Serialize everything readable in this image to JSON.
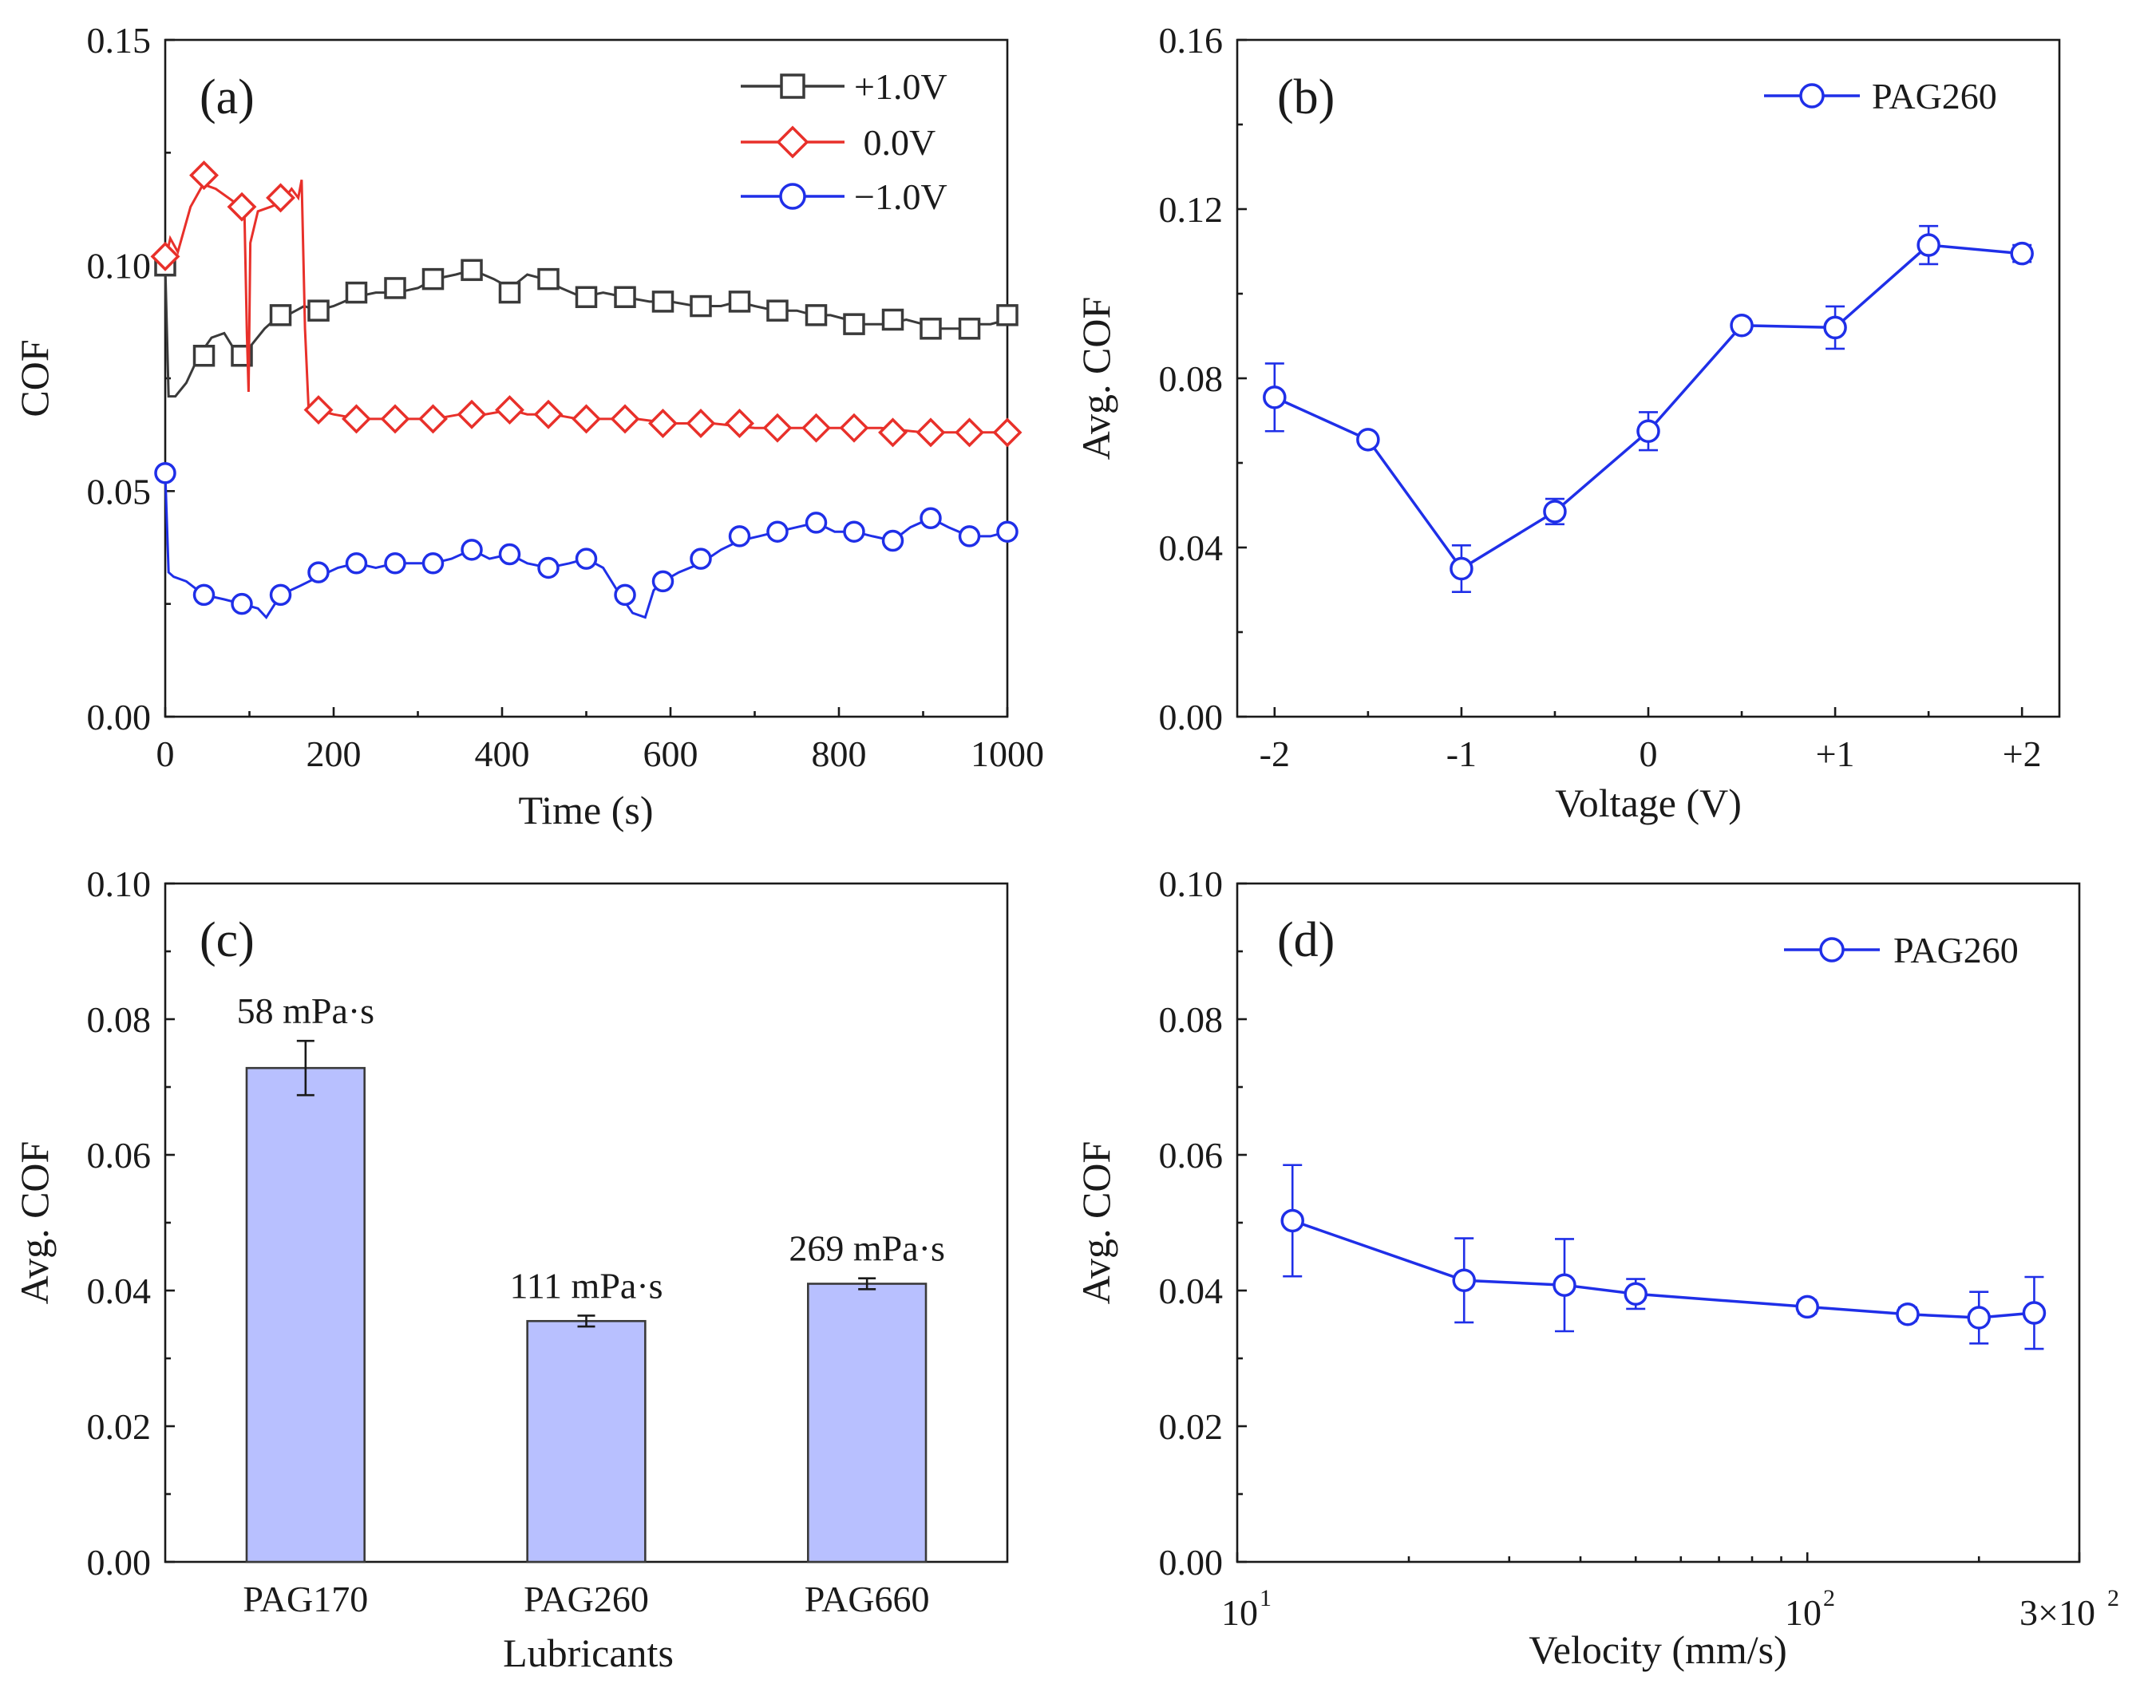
{
  "colors": {
    "black": "#3a3a3a",
    "red": "#e8302a",
    "blue": "#1f2fe8",
    "bar_fill": "#b8c0ff",
    "bar_edge": "#3a3a3a"
  },
  "chart_data": [
    {
      "id": "a",
      "type": "line",
      "panel_label": "(a)",
      "xlabel": "Time (s)",
      "ylabel": "COF",
      "xlim": [
        0,
        1000
      ],
      "ylim": [
        0,
        0.15
      ],
      "xticks": [
        0,
        200,
        400,
        600,
        800,
        1000
      ],
      "xtick_labels": [
        "0",
        "200",
        "400",
        "600",
        "800",
        "1000"
      ],
      "yticks": [
        0,
        0.05,
        0.1,
        0.15
      ],
      "ytick_labels": [
        "0.00",
        "0.05",
        "0.10",
        "0.15"
      ],
      "legend": [
        "+1.0V",
        " 0.0V",
        "−1.0V"
      ],
      "series": [
        {
          "name": "+1.0V",
          "color": "black",
          "marker": "square",
          "line": [
            [
              0,
              0.1
            ],
            [
              4,
              0.071
            ],
            [
              12,
              0.071
            ],
            [
              25,
              0.074
            ],
            [
              40,
              0.08
            ],
            [
              55,
              0.084
            ],
            [
              70,
              0.085
            ],
            [
              80,
              0.082
            ],
            [
              92,
              0.08
            ],
            [
              105,
              0.083
            ],
            [
              118,
              0.086
            ],
            [
              130,
              0.088
            ],
            [
              145,
              0.089
            ],
            [
              165,
              0.091
            ],
            [
              180,
              0.09
            ],
            [
              200,
              0.091
            ],
            [
              225,
              0.093
            ],
            [
              250,
              0.094
            ],
            [
              275,
              0.094
            ],
            [
              300,
              0.095
            ],
            [
              320,
              0.097
            ],
            [
              345,
              0.098
            ],
            [
              365,
              0.099
            ],
            [
              390,
              0.097
            ],
            [
              410,
              0.095
            ],
            [
              430,
              0.098
            ],
            [
              450,
              0.097
            ],
            [
              470,
              0.095
            ],
            [
              495,
              0.093
            ],
            [
              520,
              0.094
            ],
            [
              545,
              0.093
            ],
            [
              575,
              0.092
            ],
            [
              600,
              0.092
            ],
            [
              630,
              0.091
            ],
            [
              660,
              0.091
            ],
            [
              680,
              0.092
            ],
            [
              700,
              0.091
            ],
            [
              725,
              0.09
            ],
            [
              750,
              0.09
            ],
            [
              770,
              0.089
            ],
            [
              790,
              0.089
            ],
            [
              810,
              0.088
            ],
            [
              830,
              0.087
            ],
            [
              855,
              0.087
            ],
            [
              880,
              0.088
            ],
            [
              900,
              0.087
            ],
            [
              920,
              0.086
            ],
            [
              945,
              0.086
            ],
            [
              965,
              0.087
            ],
            [
              980,
              0.087
            ],
            [
              1000,
              0.088
            ]
          ],
          "markers": [
            [
              0,
              0.1
            ],
            [
              46,
              0.08
            ],
            [
              91,
              0.08
            ],
            [
              137,
              0.089
            ],
            [
              182,
              0.09
            ],
            [
              227,
              0.094
            ],
            [
              273,
              0.095
            ],
            [
              318,
              0.097
            ],
            [
              364,
              0.099
            ],
            [
              409,
              0.094
            ],
            [
              455,
              0.097
            ],
            [
              500,
              0.093
            ],
            [
              546,
              0.093
            ],
            [
              591,
              0.092
            ],
            [
              636,
              0.091
            ],
            [
              682,
              0.092
            ],
            [
              727,
              0.09
            ],
            [
              773,
              0.089
            ],
            [
              818,
              0.087
            ],
            [
              864,
              0.088
            ],
            [
              909,
              0.086
            ],
            [
              955,
              0.086
            ],
            [
              1000,
              0.089
            ]
          ]
        },
        {
          "name": "0.0V",
          "color": "red",
          "marker": "diamond",
          "line": [
            [
              0,
              0.101
            ],
            [
              6,
              0.106
            ],
            [
              15,
              0.103
            ],
            [
              30,
              0.113
            ],
            [
              45,
              0.118
            ],
            [
              60,
              0.117
            ],
            [
              75,
              0.115
            ],
            [
              90,
              0.113
            ],
            [
              94,
              0.112
            ],
            [
              97,
              0.085
            ],
            [
              99,
              0.072
            ],
            [
              101,
              0.105
            ],
            [
              110,
              0.112
            ],
            [
              125,
              0.113
            ],
            [
              138,
              0.114
            ],
            [
              150,
              0.117
            ],
            [
              158,
              0.115
            ],
            [
              162,
              0.119
            ],
            [
              166,
              0.086
            ],
            [
              170,
              0.069
            ],
            [
              180,
              0.068
            ],
            [
              200,
              0.067
            ],
            [
              230,
              0.066
            ],
            [
              260,
              0.066
            ],
            [
              290,
              0.066
            ],
            [
              320,
              0.066
            ],
            [
              350,
              0.067
            ],
            [
              380,
              0.067
            ],
            [
              410,
              0.068
            ],
            [
              430,
              0.067
            ],
            [
              460,
              0.067
            ],
            [
              490,
              0.066
            ],
            [
              520,
              0.066
            ],
            [
              560,
              0.066
            ],
            [
              600,
              0.065
            ],
            [
              650,
              0.065
            ],
            [
              700,
              0.064
            ],
            [
              750,
              0.064
            ],
            [
              800,
              0.064
            ],
            [
              850,
              0.064
            ],
            [
              900,
              0.063
            ],
            [
              950,
              0.063
            ],
            [
              1000,
              0.063
            ]
          ],
          "markers": [
            [
              0,
              0.102
            ],
            [
              46,
              0.12
            ],
            [
              91,
              0.113
            ],
            [
              137,
              0.115
            ],
            [
              182,
              0.068
            ],
            [
              227,
              0.066
            ],
            [
              273,
              0.066
            ],
            [
              318,
              0.066
            ],
            [
              364,
              0.067
            ],
            [
              409,
              0.068
            ],
            [
              455,
              0.067
            ],
            [
              500,
              0.066
            ],
            [
              546,
              0.066
            ],
            [
              591,
              0.065
            ],
            [
              636,
              0.065
            ],
            [
              682,
              0.065
            ],
            [
              727,
              0.064
            ],
            [
              773,
              0.064
            ],
            [
              818,
              0.064
            ],
            [
              864,
              0.063
            ],
            [
              909,
              0.063
            ],
            [
              955,
              0.063
            ],
            [
              1000,
              0.063
            ]
          ]
        },
        {
          "name": "−1.0V",
          "color": "blue",
          "marker": "circle",
          "line": [
            [
              0,
              0.054
            ],
            [
              4,
              0.032
            ],
            [
              10,
              0.031
            ],
            [
              25,
              0.03
            ],
            [
              46,
              0.027
            ],
            [
              70,
              0.026
            ],
            [
              91,
              0.025
            ],
            [
              110,
              0.024
            ],
            [
              120,
              0.022
            ],
            [
              137,
              0.027
            ],
            [
              160,
              0.029
            ],
            [
              182,
              0.031
            ],
            [
              205,
              0.033
            ],
            [
              227,
              0.034
            ],
            [
              250,
              0.033
            ],
            [
              273,
              0.034
            ],
            [
              300,
              0.034
            ],
            [
              318,
              0.034
            ],
            [
              340,
              0.035
            ],
            [
              364,
              0.037
            ],
            [
              385,
              0.035
            ],
            [
              409,
              0.036
            ],
            [
              430,
              0.034
            ],
            [
              455,
              0.033
            ],
            [
              480,
              0.034
            ],
            [
              500,
              0.035
            ],
            [
              520,
              0.033
            ],
            [
              540,
              0.027
            ],
            [
              555,
              0.023
            ],
            [
              570,
              0.022
            ],
            [
              580,
              0.028
            ],
            [
              591,
              0.03
            ],
            [
              610,
              0.032
            ],
            [
              636,
              0.034
            ],
            [
              660,
              0.037
            ],
            [
              682,
              0.039
            ],
            [
              705,
              0.04
            ],
            [
              727,
              0.041
            ],
            [
              750,
              0.042
            ],
            [
              773,
              0.043
            ],
            [
              795,
              0.041
            ],
            [
              818,
              0.041
            ],
            [
              840,
              0.04
            ],
            [
              864,
              0.039
            ],
            [
              885,
              0.042
            ],
            [
              909,
              0.044
            ],
            [
              930,
              0.042
            ],
            [
              955,
              0.04
            ],
            [
              980,
              0.04
            ],
            [
              1000,
              0.041
            ]
          ],
          "markers": [
            [
              0,
              0.054
            ],
            [
              46,
              0.027
            ],
            [
              91,
              0.025
            ],
            [
              137,
              0.027
            ],
            [
              182,
              0.032
            ],
            [
              227,
              0.034
            ],
            [
              273,
              0.034
            ],
            [
              318,
              0.034
            ],
            [
              364,
              0.037
            ],
            [
              409,
              0.036
            ],
            [
              455,
              0.033
            ],
            [
              500,
              0.035
            ],
            [
              546,
              0.027
            ],
            [
              591,
              0.03
            ],
            [
              636,
              0.035
            ],
            [
              682,
              0.04
            ],
            [
              727,
              0.041
            ],
            [
              773,
              0.043
            ],
            [
              818,
              0.041
            ],
            [
              864,
              0.039
            ],
            [
              909,
              0.044
            ],
            [
              955,
              0.04
            ],
            [
              1000,
              0.041
            ]
          ]
        }
      ]
    },
    {
      "id": "b",
      "type": "line",
      "panel_label": "(b)",
      "xlabel": "Voltage (V)",
      "ylabel": "Avg. COF",
      "xlim": [
        -2.2,
        2.2
      ],
      "ylim": [
        0,
        0.16
      ],
      "xticks": [
        -2,
        -1,
        0,
        1,
        2
      ],
      "xtick_labels": [
        "-2",
        "-1",
        "0",
        "+1",
        "+2"
      ],
      "yticks": [
        0,
        0.04,
        0.08,
        0.12,
        0.16
      ],
      "ytick_labels": [
        "0.00",
        "0.04",
        "0.08",
        "0.12",
        "0.16"
      ],
      "legend": [
        "PAG260"
      ],
      "series": [
        {
          "name": "PAG260",
          "color": "blue",
          "marker": "circle",
          "x": [
            -2,
            -1.5,
            -1,
            -0.5,
            0,
            0.5,
            1,
            1.5,
            2
          ],
          "y": [
            0.0755,
            0.0655,
            0.035,
            0.0485,
            0.0675,
            0.0925,
            0.092,
            0.1115,
            0.1095
          ],
          "err": [
            0.008,
            0.001,
            0.0055,
            0.003,
            0.0045,
            0.0015,
            0.005,
            0.0045,
            0.002
          ]
        }
      ]
    },
    {
      "id": "c",
      "type": "bar",
      "panel_label": "(c)",
      "xlabel": "Lubricants",
      "ylabel": "Avg. COF",
      "ylim": [
        0,
        0.1
      ],
      "yticks": [
        0,
        0.02,
        0.04,
        0.06,
        0.08,
        0.1
      ],
      "ytick_labels": [
        "0.00",
        "0.02",
        "0.04",
        "0.06",
        "0.08",
        "0.10"
      ],
      "categories": [
        "PAG170",
        "PAG260",
        "PAG660"
      ],
      "values": [
        0.0728,
        0.0355,
        0.041
      ],
      "err": [
        0.004,
        0.0008,
        0.0008
      ],
      "annotations": [
        "58 mPa·s",
        "111 mPa·s",
        "269 mPa·s"
      ]
    },
    {
      "id": "d",
      "type": "line",
      "panel_label": "(d)",
      "xlabel": "Velocity (mm/s)",
      "ylabel": "Avg. COF",
      "xscale": "log",
      "xlim": [
        10,
        300
      ],
      "ylim": [
        0,
        0.1
      ],
      "yticks": [
        0,
        0.02,
        0.04,
        0.06,
        0.08,
        0.1
      ],
      "ytick_labels": [
        "0.00",
        "0.02",
        "0.04",
        "0.06",
        "0.08",
        "0.10"
      ],
      "xtick_labels": [
        "10",
        "1",
        "10",
        "2",
        "3×10",
        "2"
      ],
      "legend": [
        "PAG260"
      ],
      "series": [
        {
          "name": "PAG260",
          "color": "blue",
          "marker": "circle",
          "x": [
            12.5,
            25,
            37.5,
            50,
            100,
            150,
            200,
            250
          ],
          "y": [
            0.0503,
            0.0415,
            0.0408,
            0.0395,
            0.0376,
            0.0365,
            0.036,
            0.0367
          ],
          "err": [
            0.0082,
            0.0062,
            0.0068,
            0.0022,
            0.001,
            0.001,
            0.0038,
            0.0053
          ]
        }
      ]
    }
  ]
}
